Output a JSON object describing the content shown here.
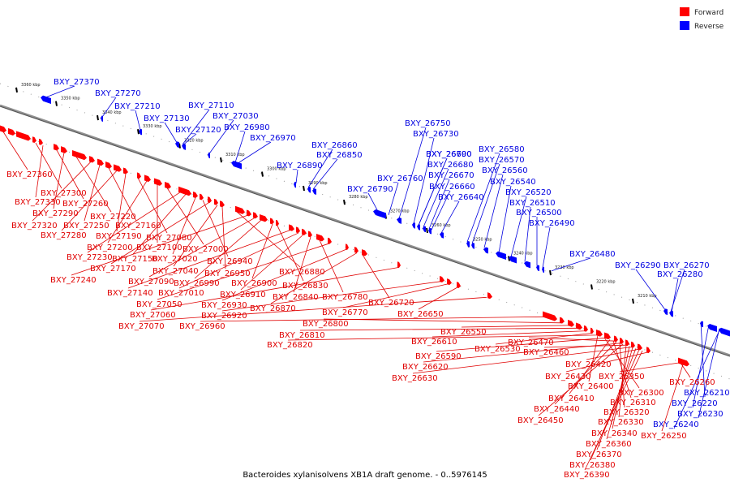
{
  "caption": "Bacteroides xylanisolvens XB1A draft genome. - 0..5976145",
  "legend": [
    {
      "label": "Forward",
      "color": "#ff0000"
    },
    {
      "label": "Reverse",
      "color": "#0000ff"
    }
  ],
  "colors": {
    "forward": "#ff0000",
    "reverse": "#0000ff",
    "forward_label": "#e00000",
    "reverse_label": "#0000e0"
  },
  "ticks": [
    "3360 kbp",
    "3350 kbp",
    "3340 kbp",
    "3330 kbp",
    "3320 kbp",
    "3310 kbp",
    "3300 kbp",
    "3290 kbp",
    "3280 kbp",
    "3270 kbp",
    "3260 kbp",
    "3250 kbp",
    "3240 kbp",
    "3230 kbp",
    "3220 kbp",
    "3210 kbp"
  ],
  "reverse_genes": [
    "BXY_27370",
    "BXY_27270",
    "BXY_27210",
    "BXY_27130",
    "BXY_27110",
    "BXY_27120",
    "BXY_27030",
    "BXY_26980",
    "BXY_26970",
    "BXY_26890",
    "BXY_26860",
    "BXY_26850",
    "BXY_26790",
    "BXY_26760",
    "BXY_26750",
    "BXY_26730",
    "BXY_26700",
    "BXY_26690",
    "BXY_26680",
    "BXY_26670",
    "BXY_26660",
    "BXY_26640",
    "BXY_26580",
    "BXY_26570",
    "BXY_26560",
    "BXY_26540",
    "BXY_26520",
    "BXY_26510",
    "BXY_26500",
    "BXY_26490",
    "BXY_26480",
    "BXY_26290",
    "BXY_26270",
    "BXY_26280",
    "BXY_26210",
    "BXY_26220",
    "BXY_26230",
    "BXY_26240"
  ],
  "forward_genes": [
    "BXY_27360",
    "BXY_27300",
    "BXY_27330",
    "BXY_27260",
    "BXY_27290",
    "BXY_27220",
    "BXY_27320",
    "BXY_27250",
    "BXY_27160",
    "BXY_27280",
    "BXY_27190",
    "BXY_27080",
    "BXY_27200",
    "BXY_27100",
    "BXY_27000",
    "BXY_27230",
    "BXY_27150",
    "BXY_27020",
    "BXY_26940",
    "BXY_27170",
    "BXY_27040",
    "BXY_26950",
    "BXY_26880",
    "BXY_27240",
    "BXY_27090",
    "BXY_26990",
    "BXY_26900",
    "BXY_26830",
    "BXY_27140",
    "BXY_27010",
    "BXY_26910",
    "BXY_26840",
    "BXY_26780",
    "BXY_27050",
    "BXY_26930",
    "BXY_26870",
    "BXY_26720",
    "BXY_27060",
    "BXY_26920",
    "BXY_26770",
    "BXY_26650",
    "BXY_27070",
    "BXY_26960",
    "BXY_26800",
    "BXY_26550",
    "BXY_26810",
    "BXY_26610",
    "BXY_26530",
    "BXY_26820",
    "BXY_26590",
    "BXY_26470",
    "BXY_26620",
    "BXY_26460",
    "BXY_26630",
    "BXY_26420",
    "BXY_26430",
    "BXY_26350",
    "BXY_26400",
    "BXY_26260",
    "BXY_26300",
    "BXY_26410",
    "BXY_26310",
    "BXY_26440",
    "BXY_26320",
    "BXY_26450",
    "BXY_26330",
    "BXY_26340",
    "BXY_26250",
    "BXY_26360",
    "BXY_26370",
    "BXY_26380",
    "BXY_26390"
  ]
}
